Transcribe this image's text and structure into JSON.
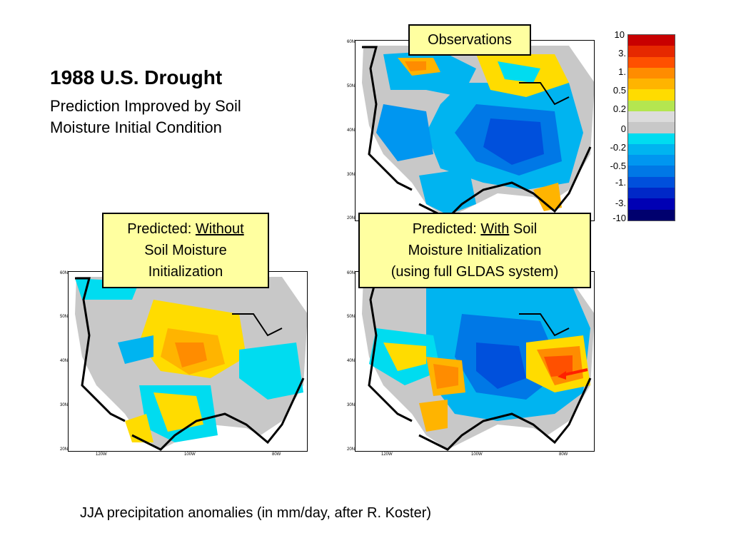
{
  "slide": {
    "title": "1988 U.S. Drought",
    "subtitle": "Prediction Improved by Soil Moisture Initial Condition",
    "caption": "JJA precipitation anomalies (in mm/day, after R. Koster)"
  },
  "panels": {
    "observations": {
      "label": "Observations"
    },
    "without": {
      "label_prefix": "Predicted: ",
      "label_emph": "Without",
      "label_rest": "Soil Moisture Initialization"
    },
    "with": {
      "label_prefix": "Predicted: ",
      "label_emph": "With",
      "label_mid": " Soil",
      "label_line2": "Moisture Initialization",
      "label_line3": "(using full GLDAS system)"
    }
  },
  "map_axes": {
    "lat_ticks": [
      "60N",
      "50N",
      "40N",
      "30N",
      "20N"
    ],
    "lon_ticks": [
      "120W",
      "100W",
      "80W"
    ]
  },
  "colorbar": {
    "labels": [
      "10",
      "3.",
      "1.",
      "0.5",
      "0.2",
      "0",
      "-0.2",
      "-0.5",
      "-1.",
      "-3.",
      "-10"
    ],
    "colors": [
      "#c80000",
      "#e62800",
      "#ff5000",
      "#ff8c00",
      "#ffb400",
      "#ffdc00",
      "#b4e650",
      "#dcdcdc",
      "#c8c8c8",
      "#00dcf0",
      "#00b4f0",
      "#0096f0",
      "#0078e6",
      "#0050dc",
      "#0028c8",
      "#0000b4",
      "#00006e"
    ]
  }
}
